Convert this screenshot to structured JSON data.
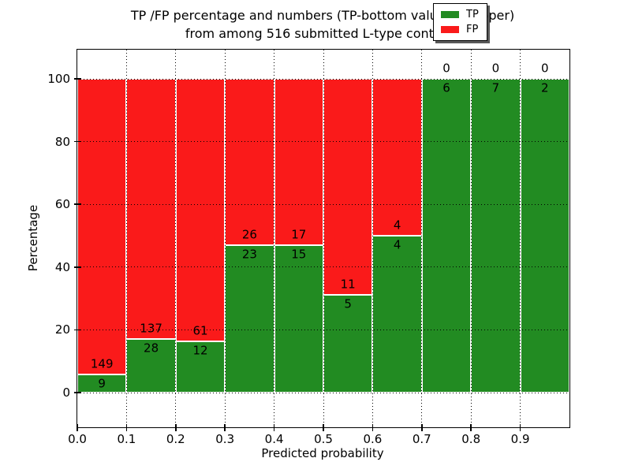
{
  "title": {
    "line1": "TP /FP percentage and numbers (TP-bottom value, FP-upper)",
    "line2": "from among 516 submitted L-type contacts"
  },
  "axes_labels": {
    "xlabel": "Predicted probability",
    "ylabel": "Percentage"
  },
  "legend": {
    "items": [
      {
        "label": "TP",
        "color": "#228b22"
      },
      {
        "label": "FP",
        "color": "#fa1a1a"
      }
    ],
    "position": "upper right"
  },
  "chart_data": {
    "type": "bar",
    "stacked": true,
    "title": "TP /FP percentage and numbers (TP-bottom value, FP-upper) from among 516 submitted L-type contacts",
    "xlabel": "Predicted probability",
    "ylabel": "Percentage",
    "total_contacts": 516,
    "xlim": [
      0.0,
      1.0
    ],
    "ylim": [
      -11,
      109
    ],
    "bin_width": 0.1,
    "grid": true,
    "legend_position": "upper right",
    "x_tick_labels": [
      "0.0",
      "0.1",
      "0.2",
      "0.3",
      "0.4",
      "0.5",
      "0.6",
      "0.7",
      "0.8",
      "0.9"
    ],
    "y_tick_values": [
      0,
      20,
      40,
      60,
      80,
      100
    ],
    "y_tick_labels": [
      "0",
      "20",
      "40",
      "60",
      "80",
      "100"
    ],
    "categories": [
      "0.0-0.1",
      "0.1-0.2",
      "0.2-0.3",
      "0.3-0.4",
      "0.4-0.5",
      "0.5-0.6",
      "0.6-0.7",
      "0.7-0.8",
      "0.8-0.9",
      "0.9-1.0"
    ],
    "series": [
      {
        "name": "TP",
        "color": "#228b22",
        "counts": [
          9,
          28,
          12,
          23,
          15,
          5,
          4,
          6,
          7,
          2
        ]
      },
      {
        "name": "FP",
        "color": "#fa1a1a",
        "counts": [
          149,
          137,
          61,
          26,
          17,
          11,
          4,
          0,
          0,
          0
        ]
      }
    ],
    "tp_percent": [
      5.7,
      17.0,
      16.4,
      46.9,
      46.9,
      31.3,
      50.0,
      100.0,
      100.0,
      100.0
    ]
  }
}
